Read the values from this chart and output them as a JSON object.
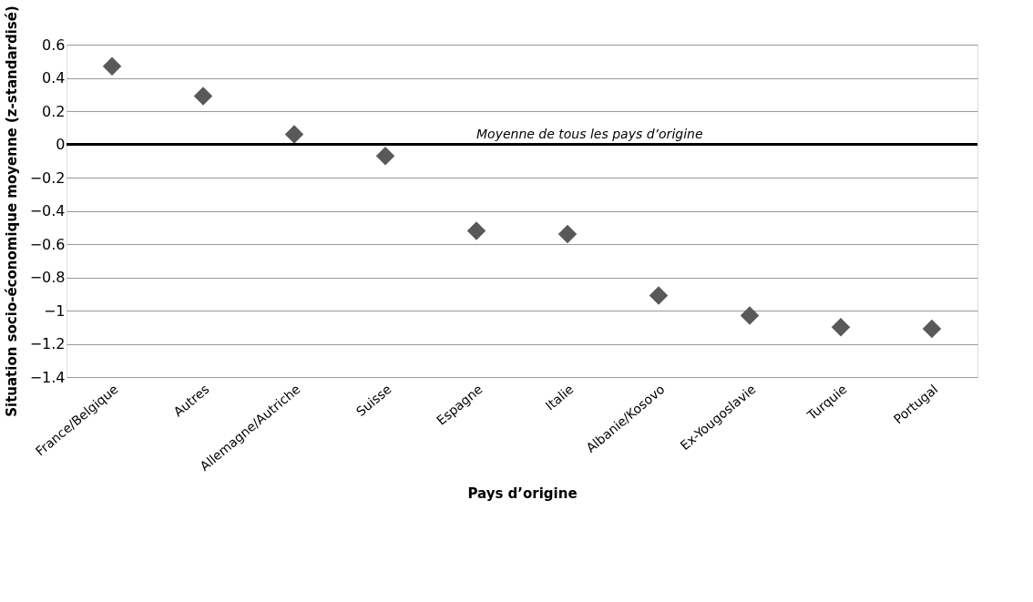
{
  "chart_data": {
    "type": "scatter",
    "xlabel": "Pays d’origine",
    "ylabel": "Situation socio-économique moyenne (z-standardisé)",
    "categories": [
      "France/Belgique",
      "Autres",
      "Allemagne/Autriche",
      "Suisse",
      "Espagne",
      "Italie",
      "Albanie/Kosovo",
      "Ex-Yougoslavie",
      "Turquie",
      "Portugal"
    ],
    "series": [
      {
        "color": "#595959",
        "values": [
          0.47,
          0.29,
          0.06,
          -0.07,
          -0.52,
          -0.54,
          -0.91,
          -1.03,
          -1.1,
          -1.11
        ]
      }
    ],
    "ylim": [
      -1.4,
      0.6
    ],
    "yticks": [
      {
        "value": -1.4,
        "label": "−1.4"
      },
      {
        "value": -1.2,
        "label": "−1.2"
      },
      {
        "value": -1,
        "label": "−1"
      },
      {
        "value": -0.8,
        "label": "−0.8"
      },
      {
        "value": -0.6,
        "label": "−0.6"
      },
      {
        "value": -0.4,
        "label": "−0.4"
      },
      {
        "value": -0.2,
        "label": "−0.2"
      },
      0,
      0.2,
      0.4,
      0.6
    ],
    "ref_lines": [
      {
        "axis": "y",
        "value": 0,
        "label": "Moyenne de tous les pays d’origine",
        "color": "#000000"
      }
    ],
    "grid": "y",
    "marker": "diamond"
  }
}
